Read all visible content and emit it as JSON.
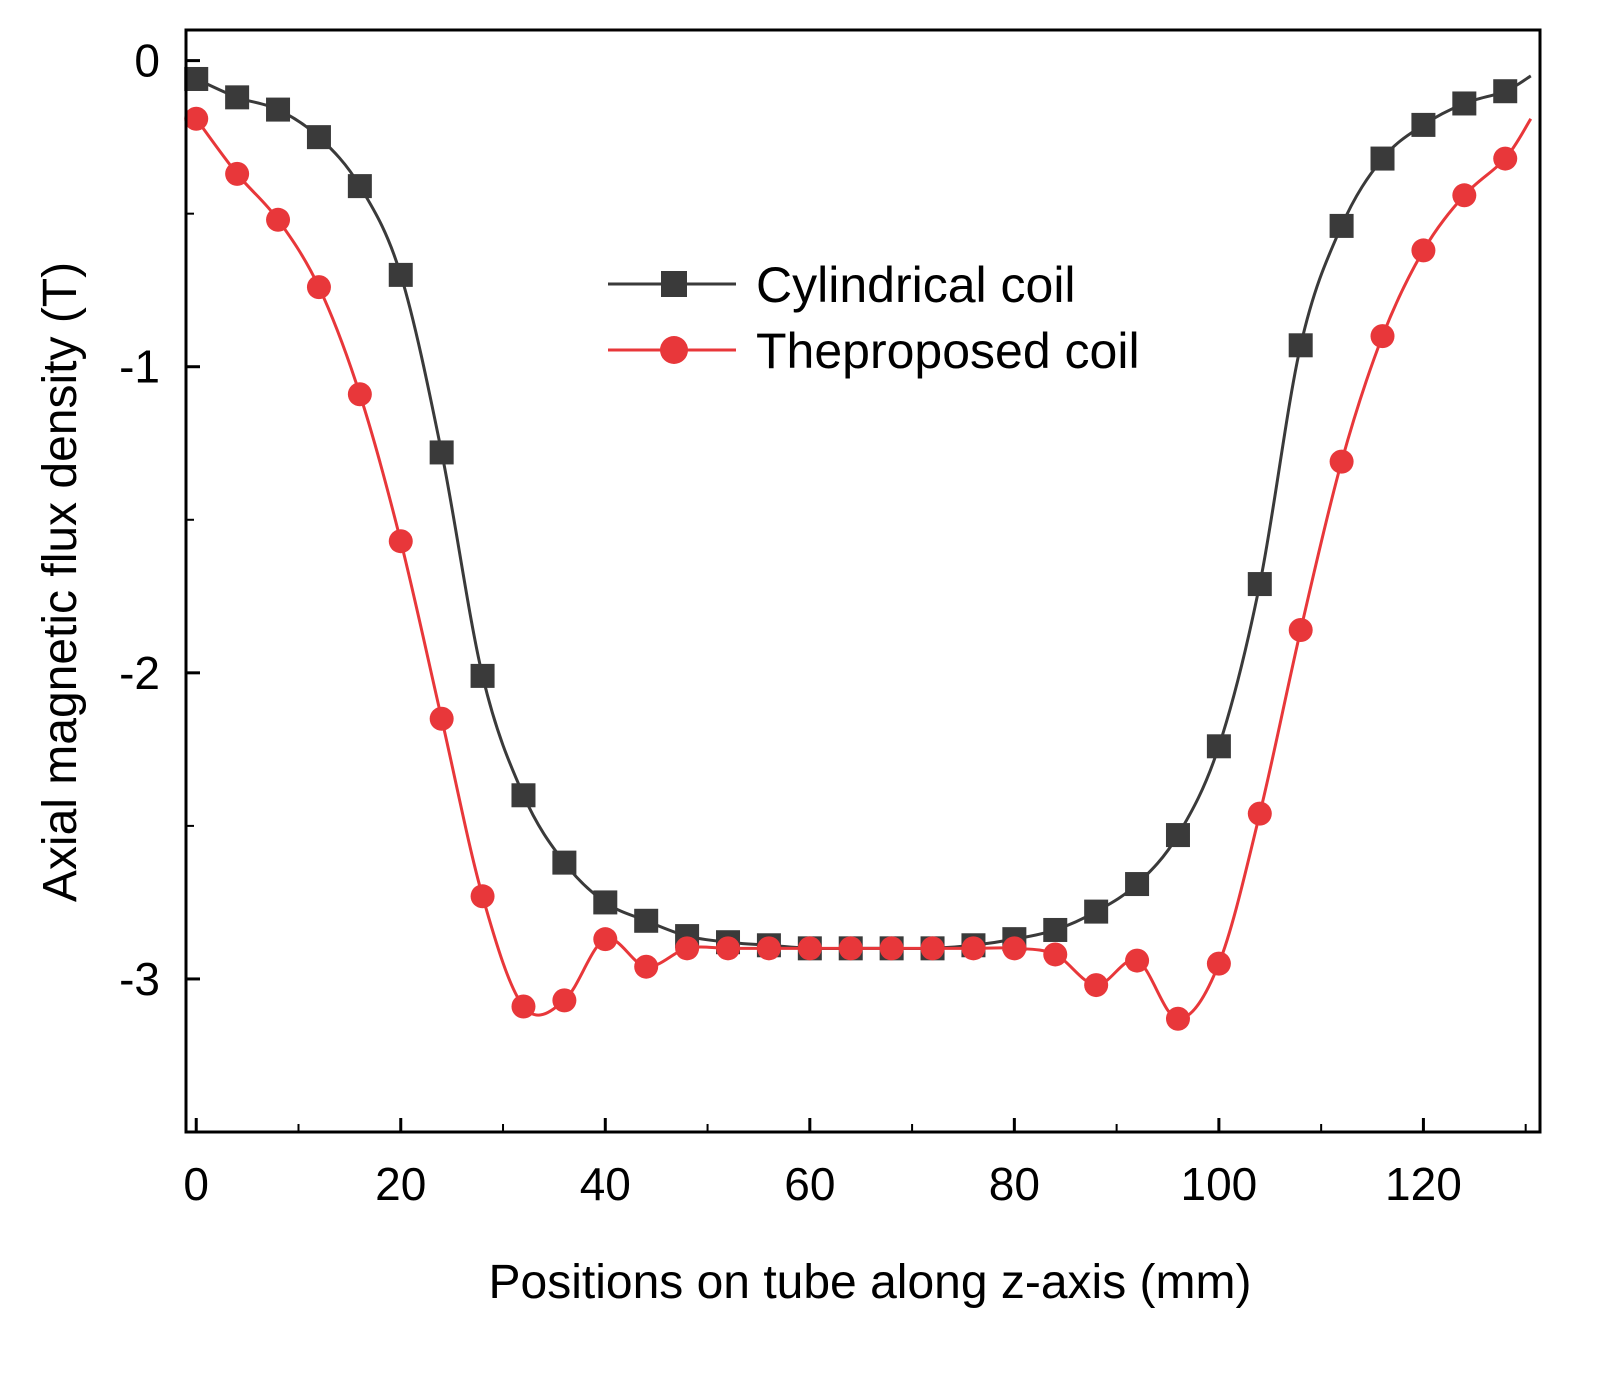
{
  "chart_data": {
    "type": "line",
    "title": "",
    "xlabel": "Positions on tube along z-axis (mm)",
    "ylabel": "Axial magnetic flux density (T)",
    "xlim": [
      -1,
      131.4
    ],
    "ylim": [
      -3.5,
      0.1
    ],
    "xticks": [
      0,
      20,
      40,
      60,
      80,
      100,
      120
    ],
    "xtick_labels": [
      "0",
      "20",
      "40",
      "60",
      "80",
      "100",
      "120"
    ],
    "yticks": [
      0,
      -1,
      -2,
      -3
    ],
    "ytick_labels": [
      "0",
      "-1",
      "-2",
      "-3"
    ],
    "grid": false,
    "legend_position": "upper-center",
    "x": [
      0,
      4,
      8,
      12,
      16,
      20,
      24,
      28,
      32,
      36,
      40,
      44,
      48,
      52,
      56,
      60,
      64,
      68,
      72,
      76,
      80,
      84,
      88,
      92,
      96,
      100,
      104,
      108,
      112,
      116,
      120,
      124,
      128
    ],
    "series": [
      {
        "name": "Cylindrical coil",
        "color": "#3a3a3a",
        "marker": "square",
        "values": [
          -0.06,
          -0.12,
          -0.16,
          -0.25,
          -0.41,
          -0.7,
          -1.28,
          -2.01,
          -2.4,
          -2.62,
          -2.75,
          -2.81,
          -2.86,
          -2.88,
          -2.89,
          -2.9,
          -2.9,
          -2.9,
          -2.9,
          -2.89,
          -2.87,
          -2.84,
          -2.78,
          -2.69,
          -2.53,
          -2.24,
          -1.71,
          -0.93,
          -0.54,
          -0.32,
          -0.21,
          -0.14,
          -0.1
        ],
        "end": [
          130.5,
          -0.05
        ]
      },
      {
        "name": "Theproposed coil",
        "color": "#e8373a",
        "marker": "circle",
        "values": [
          -0.19,
          -0.37,
          -0.52,
          -0.74,
          -1.09,
          -1.57,
          -2.15,
          -2.73,
          -3.09,
          -3.07,
          -2.87,
          -2.96,
          -2.9,
          -2.9,
          -2.9,
          -2.9,
          -2.9,
          -2.9,
          -2.9,
          -2.9,
          -2.9,
          -2.92,
          -3.02,
          -2.94,
          -3.13,
          -2.95,
          -2.46,
          -1.86,
          -1.31,
          -0.9,
          -0.62,
          -0.44,
          -0.32
        ],
        "end": [
          130.5,
          -0.19
        ]
      }
    ]
  }
}
